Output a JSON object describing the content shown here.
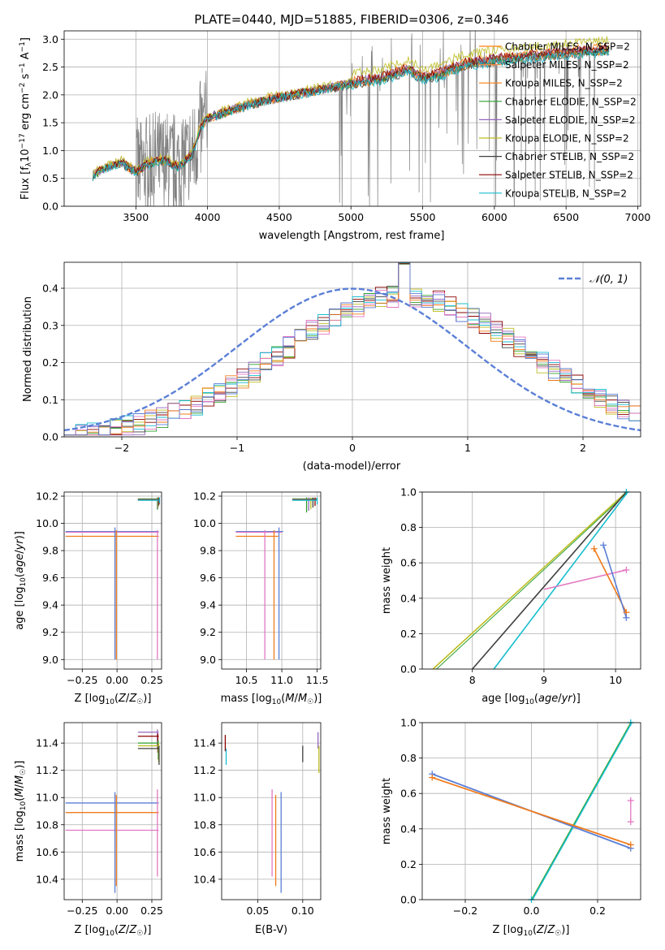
{
  "colors": {
    "series": [
      "#ff7f0e",
      "#f08a4b",
      "#ff7f0e",
      "#2ca02c",
      "#9467bd",
      "#bcbd22",
      "#404040",
      "#8b0000",
      "#17becf"
    ],
    "spectrum": "#808080",
    "normal": "#5b7fd6",
    "c_blue": "#5b7fd6",
    "c_orange": "#f07b1c",
    "c_pink": "#e377c2",
    "c_green": "#2ca02c",
    "c_purple": "#9467bd",
    "c_olive": "#bcbd22",
    "c_dark": "#404040",
    "c_red": "#8b0000",
    "c_cyan": "#17becf"
  },
  "chart_data": [
    {
      "id": "spectrum",
      "type": "line",
      "title": "PLATE=0440, MJD=51885, FIBERID=0306, z=0.346",
      "xlabel": "wavelength [Angstrom, rest frame]",
      "ylabel": "Flux [f_λ 10^-17 erg cm^-2 s^-1 A^-1]",
      "xlim": [
        3000,
        7020
      ],
      "ylim": [
        0,
        3.15
      ],
      "xticks": [
        "3500",
        "4000",
        "4500",
        "5000",
        "5500",
        "6000",
        "6500",
        "7000"
      ],
      "yticks": [
        "0.0",
        "0.5",
        "1.0",
        "1.5",
        "2.0",
        "2.5",
        "3.0"
      ],
      "legend_position": "upper-right",
      "legend": [
        "Chabrier MILES, N_SSP=2",
        "Salpeter MILES, N_SSP=2",
        "Kroupa MILES, N_SSP=2",
        "Chabrier ELODIE, N_SSP=2",
        "Salpeter ELODIE, N_SSP=2",
        "Kroupa ELODIE, N_SSP=2",
        "Chabrier STELIB, N_SSP=2",
        "Salpeter STELIB, N_SSP=2",
        "Kroupa STELIB, N_SSP=2"
      ],
      "model_anchor": {
        "x": [
          3200,
          3300,
          3400,
          3500,
          3600,
          3700,
          3800,
          3900,
          3950,
          4000,
          4200,
          4400,
          4600,
          4800,
          5000,
          5200,
          5400,
          5500,
          5600,
          5800,
          6000,
          6200,
          6400,
          6600,
          6800
        ],
        "y": [
          0.55,
          0.7,
          0.78,
          0.62,
          0.78,
          0.82,
          0.7,
          0.95,
          1.4,
          1.58,
          1.75,
          1.9,
          2.0,
          2.1,
          2.2,
          2.28,
          2.45,
          2.3,
          2.35,
          2.55,
          2.62,
          2.68,
          2.72,
          2.78,
          2.8
        ]
      }
    },
    {
      "id": "residuals",
      "type": "line",
      "xlabel": "(data-model)/error",
      "ylabel": "Normed distribution",
      "xlim": [
        -2.5,
        2.5
      ],
      "ylim": [
        0,
        0.47
      ],
      "xticks": [
        "−2",
        "−1",
        "0",
        "1",
        "2"
      ],
      "yticks": [
        "0.0",
        "0.1",
        "0.2",
        "0.3",
        "0.4"
      ],
      "legend": [
        "𝒩(0, 1)"
      ],
      "legend_position": "upper-right"
    },
    {
      "id": "z-age",
      "type": "scatter",
      "xlabel": "Z [log10(Z/Z☉)]",
      "ylabel": "age  [log10(age/yr)]",
      "xlim": [
        -0.38,
        0.32
      ],
      "ylim": [
        8.93,
        10.23
      ],
      "xticks": [
        "−0.25",
        "0.00",
        "0.25"
      ],
      "yticks": [
        "9.0",
        "9.2",
        "9.4",
        "9.6",
        "9.8",
        "10.0",
        "10.2"
      ]
    },
    {
      "id": "mass-age",
      "type": "scatter",
      "xlabel": "mass [log10(M/M☉)]",
      "ylabel": "",
      "xlim": [
        10.15,
        11.55
      ],
      "ylim": [
        8.93,
        10.23
      ],
      "xticks": [
        "10.5",
        "11.0",
        "11.5"
      ],
      "yticks": [
        "9.0",
        "9.2",
        "9.4",
        "9.6",
        "9.8",
        "10.0",
        "10.2"
      ]
    },
    {
      "id": "age-weight",
      "type": "line",
      "xlabel": "age  [log10(age/yr)]",
      "ylabel": "mass weight",
      "xlim": [
        7.3,
        10.35
      ],
      "ylim": [
        0,
        1
      ],
      "xticks": [
        "8",
        "9",
        "10"
      ],
      "yticks": [
        "0.0",
        "0.2",
        "0.4",
        "0.6",
        "0.8",
        "1.0"
      ]
    },
    {
      "id": "z-mass",
      "type": "scatter",
      "xlabel": "Z [log10(Z/Z☉)]",
      "ylabel": "mass [log10(M/M☉)]",
      "xlim": [
        -0.38,
        0.32
      ],
      "ylim": [
        10.25,
        11.55
      ],
      "xticks": [
        "−0.25",
        "0.00",
        "0.25"
      ],
      "yticks": [
        "10.4",
        "10.6",
        "10.8",
        "11.0",
        "11.2",
        "11.4"
      ]
    },
    {
      "id": "ebv-mass",
      "type": "scatter",
      "xlabel": "E(B-V)",
      "ylabel": "",
      "xlim": [
        0.01,
        0.12
      ],
      "ylim": [
        10.25,
        11.55
      ],
      "xticks": [
        "0.05",
        "0.10"
      ],
      "yticks": [
        "10.4",
        "10.6",
        "10.8",
        "11.0",
        "11.2",
        "11.4"
      ]
    },
    {
      "id": "z-weight",
      "type": "line",
      "xlabel": "Z [log10(Z/Z☉)]",
      "ylabel": "mass weight",
      "xlim": [
        -0.33,
        0.33
      ],
      "ylim": [
        0,
        1
      ],
      "xticks": [
        "−0.2",
        "0.0",
        "0.2"
      ],
      "yticks": [
        "0.0",
        "0.2",
        "0.4",
        "0.6",
        "0.8",
        "1.0"
      ]
    }
  ]
}
